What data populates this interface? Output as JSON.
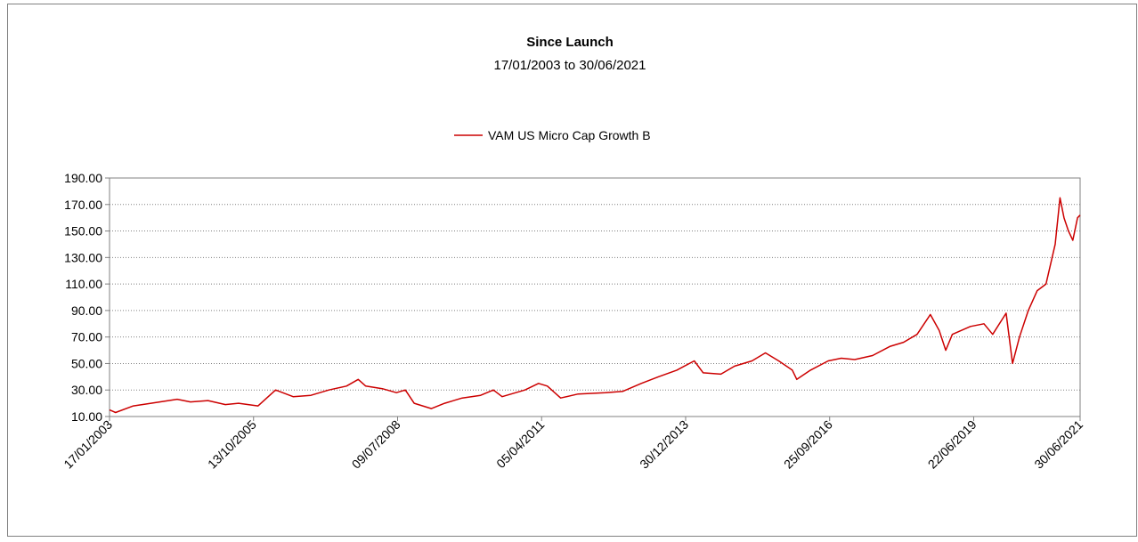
{
  "chart_data": {
    "type": "line",
    "title": "Since Launch",
    "subtitle": "17/01/2003 to 30/06/2021",
    "x": [
      "17/01/2003",
      "28/02/2003",
      "01/07/2003",
      "01/11/2003",
      "01/03/2004",
      "01/05/2004",
      "01/08/2004",
      "01/12/2004",
      "01/04/2005",
      "01/07/2005",
      "13/11/2005",
      "15/03/2006",
      "15/07/2006",
      "15/11/2006",
      "20/03/2007",
      "20/07/2007",
      "10/10/2007",
      "01/12/2007",
      "25/03/2008",
      "01/07/2008",
      "01/09/2008",
      "01/11/2008",
      "01/03/2009",
      "01/06/2009",
      "01/10/2009",
      "05/02/2010",
      "05/05/2010",
      "05/07/2010",
      "10/12/2010",
      "15/03/2011",
      "15/05/2011",
      "15/08/2011",
      "15/12/2011",
      "20/06/2012",
      "20/10/2012",
      "25/02/2013",
      "25/06/2013",
      "30/10/2013",
      "28/02/2014",
      "01/05/2014",
      "01/09/2014",
      "05/12/2014",
      "05/04/2015",
      "07/07/2015",
      "07/10/2015",
      "10/01/2016",
      "10/02/2016",
      "15/05/2016",
      "15/09/2016",
      "15/12/2016",
      "18/03/2017",
      "20/07/2017",
      "20/11/2017",
      "20/02/2018",
      "25/05/2018",
      "25/08/2018",
      "25/10/2018",
      "10/12/2018",
      "25/01/2019",
      "30/05/2019",
      "01/09/2019",
      "01/11/2019",
      "02/02/2020",
      "18/03/2020",
      "05/05/2020",
      "05/07/2020",
      "05/09/2020",
      "05/11/2020",
      "08/01/2021",
      "10/02/2021",
      "10/03/2021",
      "10/04/2021",
      "10/05/2021",
      "12/06/2021",
      "30/06/2021"
    ],
    "series": [
      {
        "name": "VAM US Micro Cap Growth B",
        "color": "#cc0000",
        "values": [
          15,
          13,
          18,
          20,
          22,
          23,
          21,
          22,
          19,
          20,
          18,
          30,
          25,
          26,
          30,
          33,
          38,
          33,
          31,
          28,
          30,
          20,
          16,
          20,
          24,
          26,
          30,
          25,
          30,
          35,
          33,
          24,
          27,
          28,
          29,
          35,
          40,
          45,
          52,
          43,
          42,
          48,
          52,
          58,
          52,
          45,
          38,
          45,
          52,
          54,
          53,
          56,
          63,
          66,
          72,
          87,
          75,
          60,
          72,
          78,
          80,
          72,
          88,
          50,
          70,
          90,
          105,
          110,
          140,
          175,
          160,
          150,
          143,
          160,
          162
        ]
      }
    ],
    "xlim": [
      "17/01/2003",
      "30/06/2021"
    ],
    "xticks": [
      "17/01/2003",
      "13/10/2005",
      "09/07/2008",
      "05/04/2011",
      "30/12/2013",
      "25/09/2016",
      "22/06/2019",
      "30/06/2021"
    ],
    "ylim": [
      10,
      190
    ],
    "yticks": [
      {
        "value": 10,
        "label": "10.00"
      },
      {
        "value": 30,
        "label": "30.00"
      },
      {
        "value": 50,
        "label": "50.00"
      },
      {
        "value": 70,
        "label": "70.00"
      },
      {
        "value": 90,
        "label": "90.00"
      },
      {
        "value": 110,
        "label": "110.00"
      },
      {
        "value": 130,
        "label": "130.00"
      },
      {
        "value": 150,
        "label": "150.00"
      },
      {
        "value": 170,
        "label": "170.00"
      },
      {
        "value": 190,
        "label": "190.00"
      }
    ],
    "grid": true,
    "legend": "top"
  }
}
